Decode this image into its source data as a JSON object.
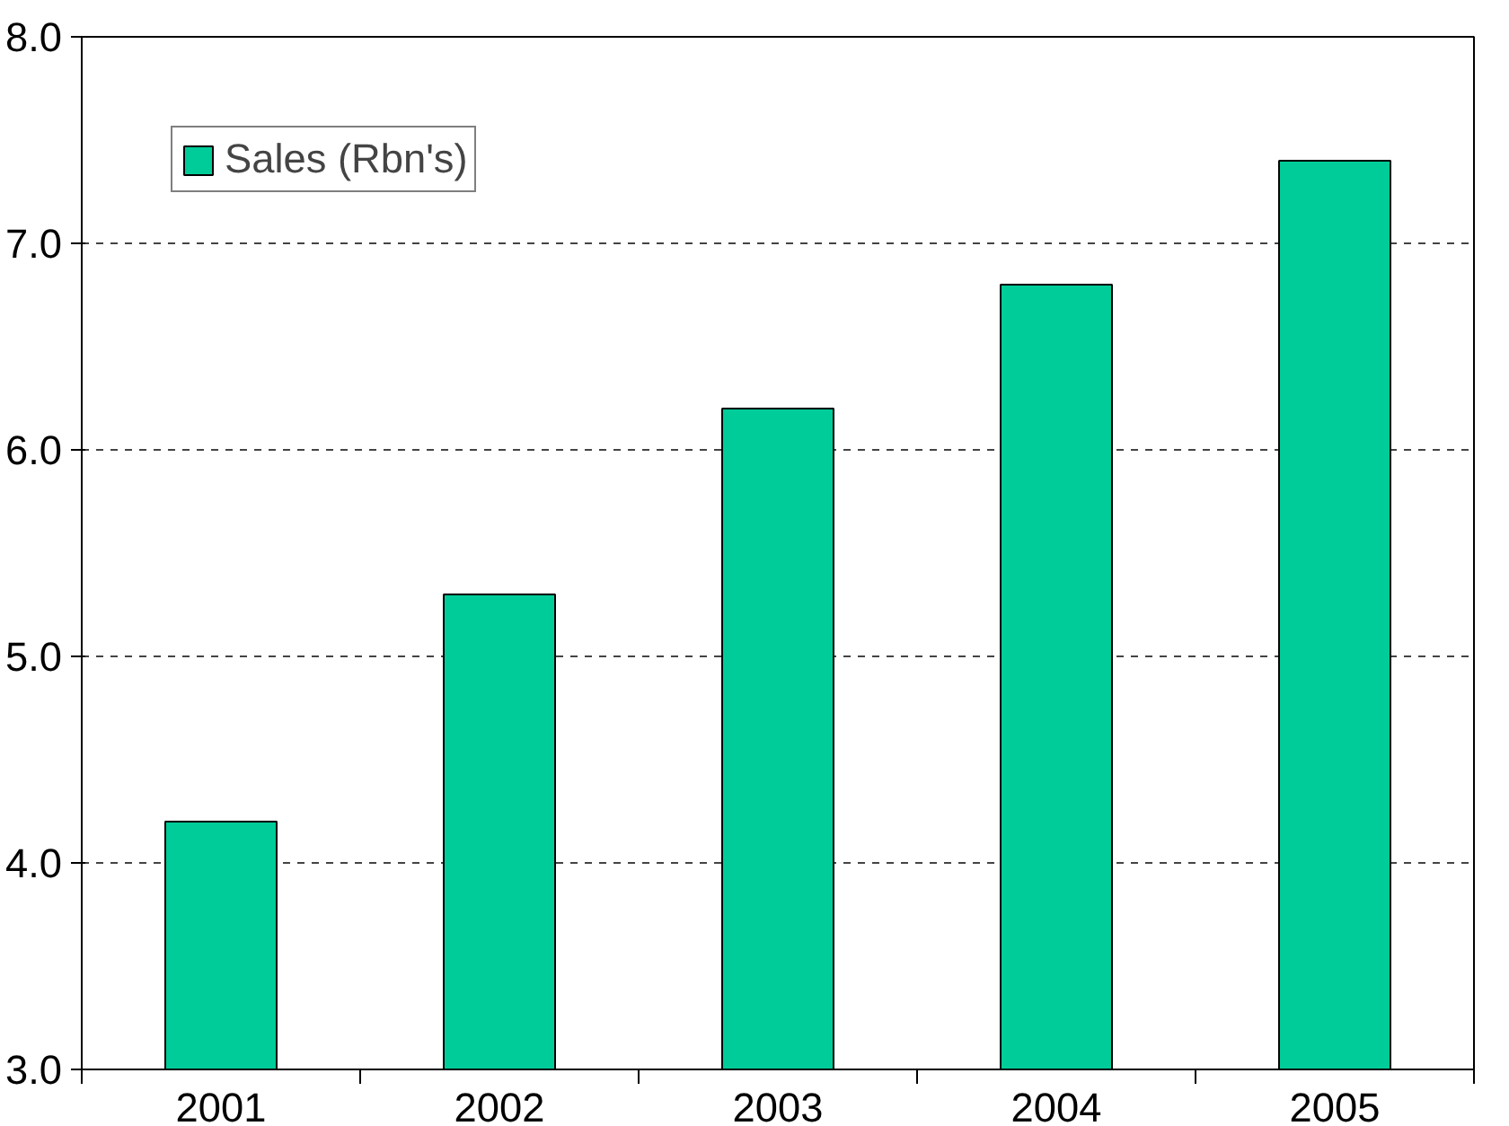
{
  "chart_data": {
    "type": "bar",
    "categories": [
      "2001",
      "2002",
      "2003",
      "2004",
      "2005"
    ],
    "series": [
      {
        "name": "Sales (Rbn's)",
        "color": "#00cc99",
        "values": [
          4.2,
          5.3,
          6.2,
          6.8,
          7.4
        ]
      }
    ],
    "ylim": [
      3,
      8
    ],
    "yticks": [
      {
        "value": 3,
        "label": "3.0"
      },
      {
        "value": 4,
        "label": "4.0"
      },
      {
        "value": 5,
        "label": "5.0"
      },
      {
        "value": 6,
        "label": "6.0"
      },
      {
        "value": 7,
        "label": "7.0"
      },
      {
        "value": 8,
        "label": "8.0"
      }
    ],
    "grid": "y",
    "legend": "top left"
  }
}
